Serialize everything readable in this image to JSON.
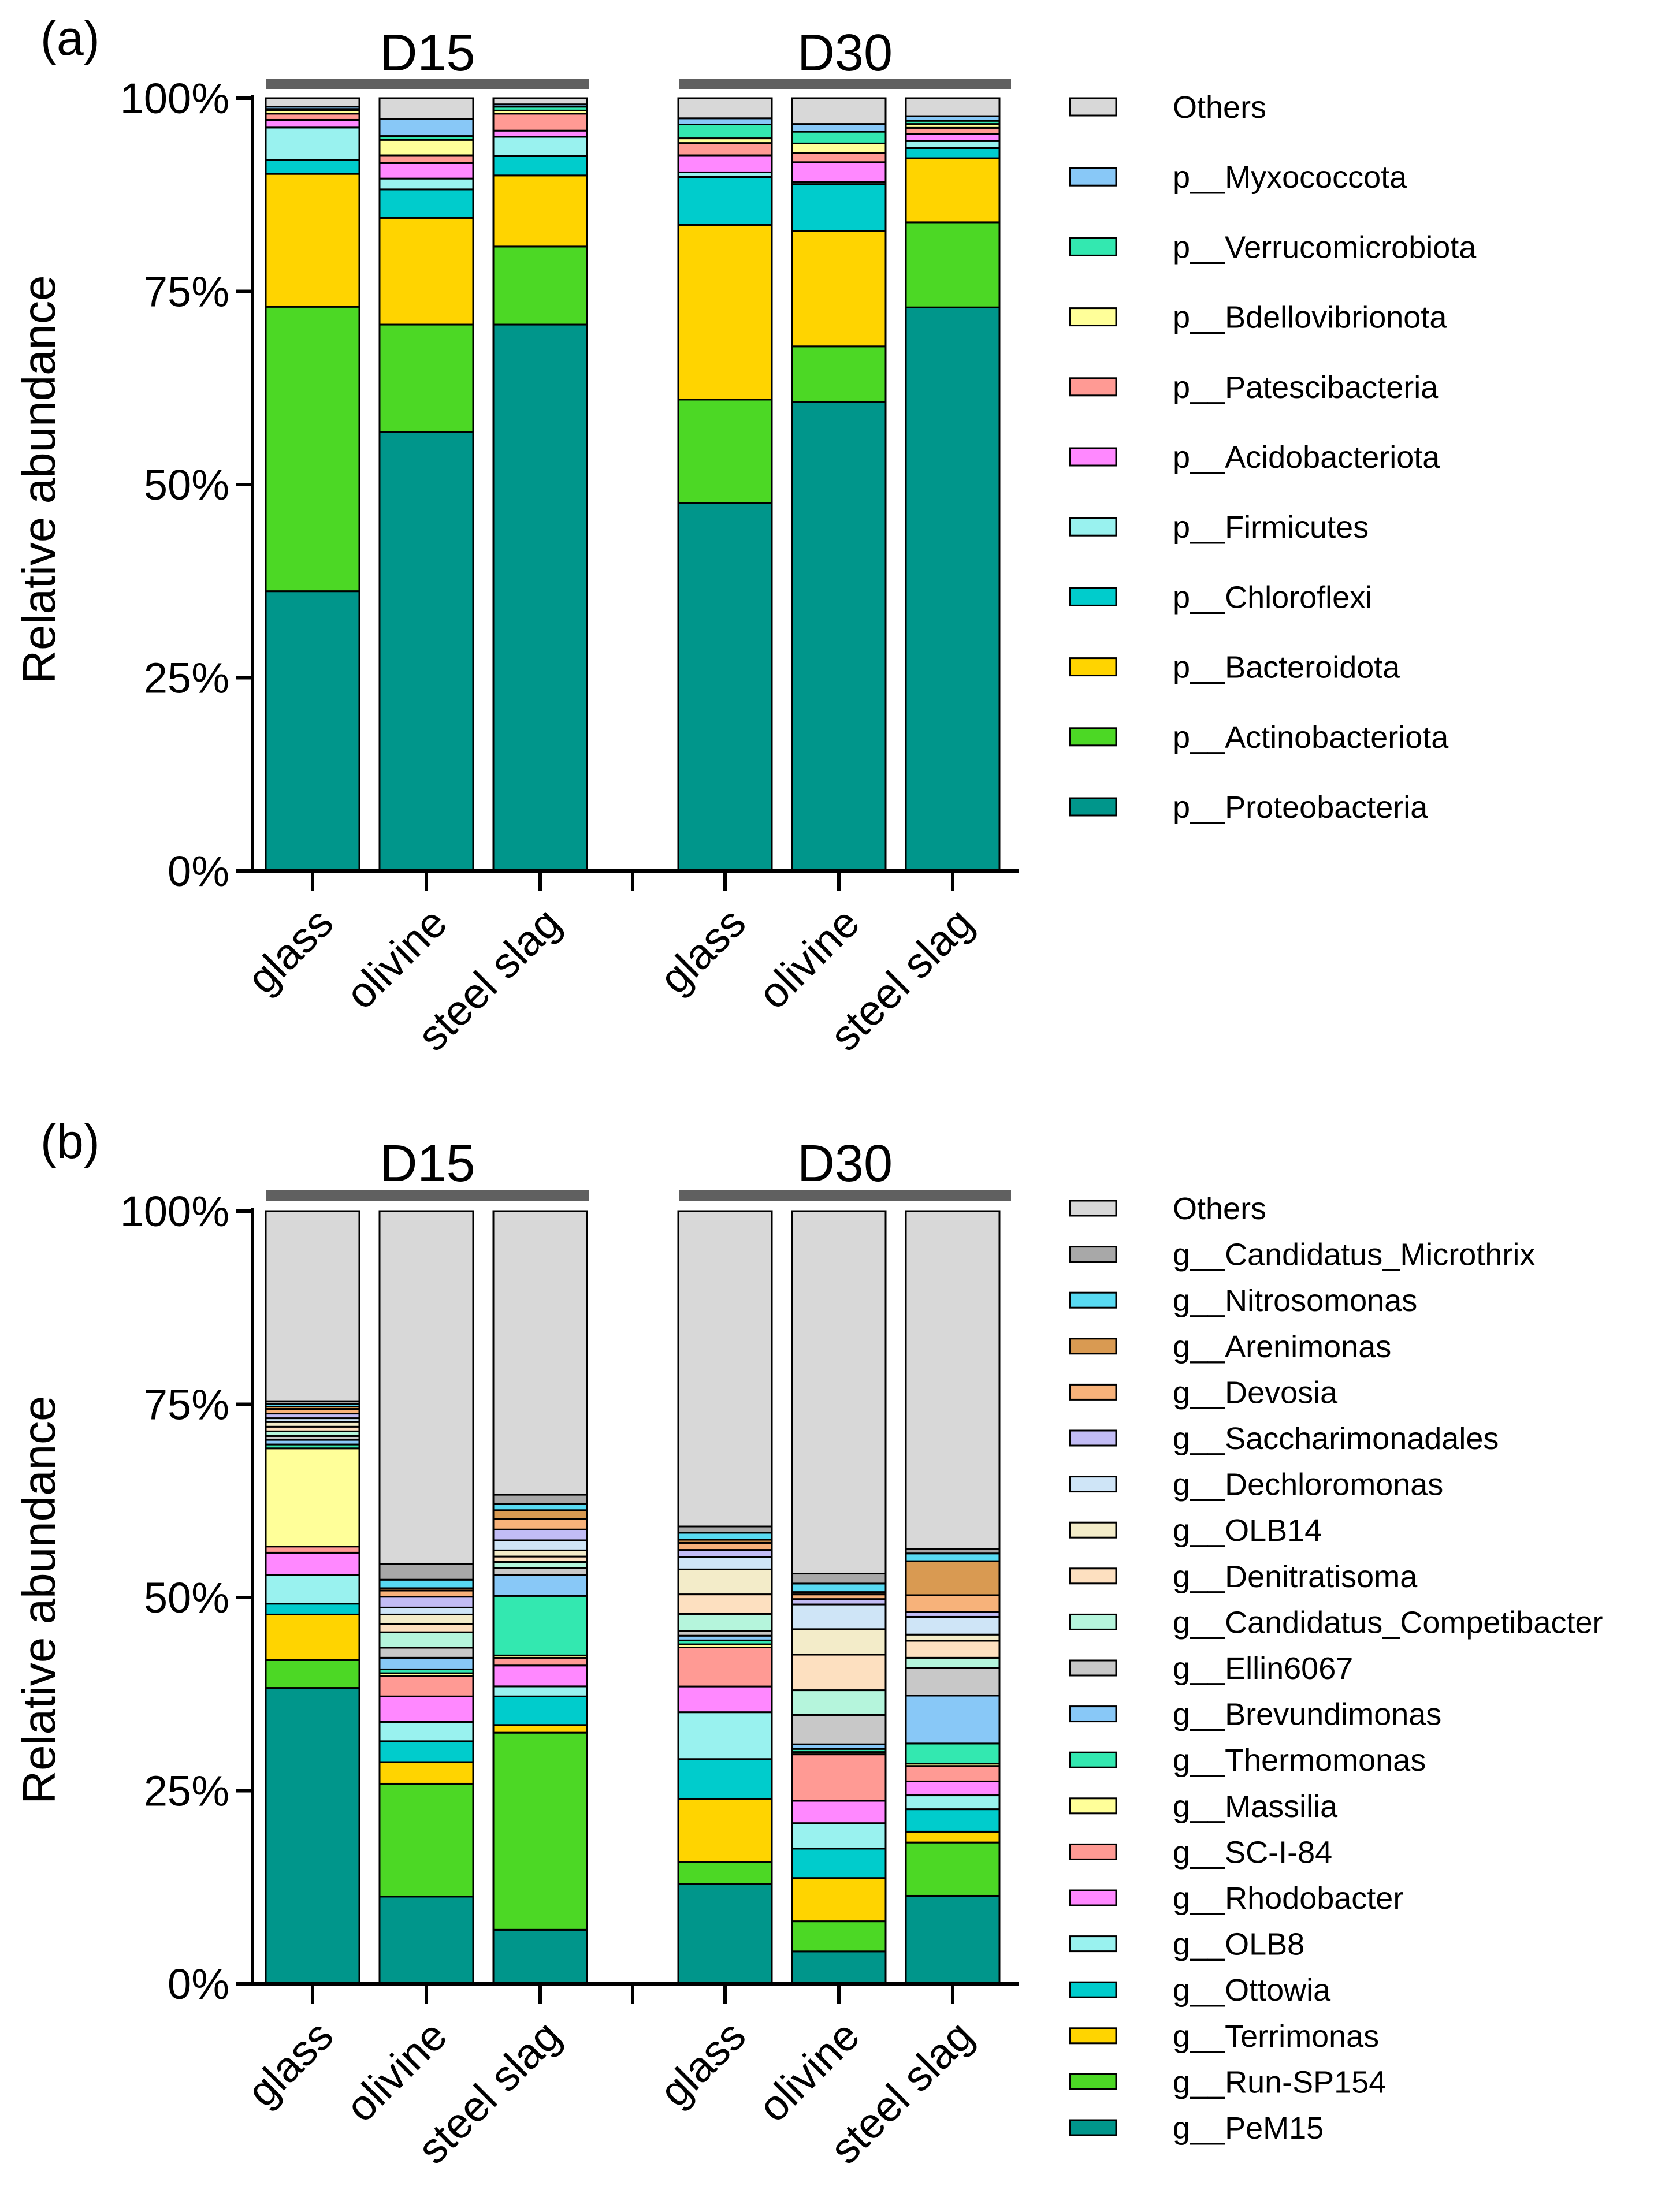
{
  "chart_data": [
    {
      "type": "bar",
      "stacked": true,
      "panel_label": "(a)",
      "ylabel": "Relative abundance",
      "xlabel": "",
      "ylim": [
        0,
        100
      ],
      "yticks": [
        "0%",
        "25%",
        "50%",
        "75%",
        "100%"
      ],
      "groups": [
        "D15",
        "D30"
      ],
      "categories": [
        "glass",
        "olivine",
        "steel slag",
        "glass",
        "olivine",
        "steel slag"
      ],
      "legend_position": "right",
      "series": [
        {
          "name": "p__Proteobacteria",
          "color": "#00968b",
          "values": [
            36.2,
            56.8,
            70.7,
            47.6,
            60.1,
            72.2
          ]
        },
        {
          "name": "p__Actinobacteriota",
          "color": "#4cd825",
          "values": [
            36.8,
            13.9,
            10.1,
            13.4,
            7.1,
            10.9
          ]
        },
        {
          "name": "p__Bacteroidota",
          "color": "#ffd400",
          "values": [
            17.2,
            13.8,
            9.2,
            22.6,
            14.8,
            8.2
          ]
        },
        {
          "name": "p__Chloroflexi",
          "color": "#00cccc",
          "values": [
            1.8,
            3.7,
            2.5,
            6.2,
            6.0,
            1.3
          ]
        },
        {
          "name": "p__Firmicutes",
          "color": "#99f2ef",
          "values": [
            4.2,
            1.4,
            2.5,
            0.6,
            0.3,
            0.9
          ]
        },
        {
          "name": "p__Acidobacteriota",
          "color": "#ff88ff",
          "values": [
            1.0,
            2.0,
            0.8,
            2.2,
            2.5,
            0.9
          ]
        },
        {
          "name": "p__Patescibacteria",
          "color": "#ff9a94",
          "values": [
            0.8,
            1.0,
            2.2,
            1.6,
            1.2,
            0.8
          ]
        },
        {
          "name": "p__Bdellovibrionota",
          "color": "#ffff99",
          "values": [
            0.4,
            2.0,
            0.4,
            0.6,
            1.2,
            0.5
          ]
        },
        {
          "name": "p__Verrucomicrobiota",
          "color": "#33e8b0",
          "values": [
            0.2,
            0.5,
            0.5,
            1.8,
            1.5,
            0.4
          ]
        },
        {
          "name": "p__Myxococcota",
          "color": "#88c8f7",
          "values": [
            0.3,
            2.2,
            0.3,
            0.8,
            1.0,
            0.6
          ]
        },
        {
          "name": "Others",
          "color": "#d8d8d8",
          "values": [
            1.1,
            2.7,
            0.8,
            2.6,
            3.3,
            2.3
          ]
        }
      ]
    },
    {
      "type": "bar",
      "stacked": true,
      "panel_label": "(b)",
      "ylabel": "Relative abundance",
      "xlabel": "",
      "ylim": [
        0,
        100
      ],
      "yticks": [
        "0%",
        "25%",
        "50%",
        "75%",
        "100%"
      ],
      "groups": [
        "D15",
        "D30"
      ],
      "categories": [
        "glass",
        "olivine",
        "steel slag",
        "glass",
        "olivine",
        "steel slag"
      ],
      "legend_position": "right",
      "series": [
        {
          "name": "g__PeM15",
          "color": "#00968b",
          "values": [
            38.3,
            11.3,
            7.0,
            12.8,
            4.2,
            11.4
          ]
        },
        {
          "name": "g__Run-SP154",
          "color": "#4cd825",
          "values": [
            3.6,
            14.6,
            25.5,
            2.8,
            3.9,
            6.9
          ]
        },
        {
          "name": "g__Terrimonas",
          "color": "#ffd400",
          "values": [
            5.9,
            2.8,
            1.0,
            8.1,
            5.6,
            1.4
          ]
        },
        {
          "name": "g__Ottowia",
          "color": "#00cccc",
          "values": [
            1.4,
            2.7,
            3.7,
            5.1,
            3.8,
            2.9
          ]
        },
        {
          "name": "g__OLB8",
          "color": "#99f2ef",
          "values": [
            3.7,
            2.5,
            1.3,
            6.0,
            3.3,
            1.8
          ]
        },
        {
          "name": "g__Rhodobacter",
          "color": "#ff88ff",
          "values": [
            2.9,
            3.3,
            2.7,
            3.3,
            2.9,
            1.8
          ]
        },
        {
          "name": "g__SC-I-84",
          "color": "#ff9a94",
          "values": [
            0.8,
            2.6,
            1.0,
            5.0,
            6.0,
            2.0
          ]
        },
        {
          "name": "g__Massilia",
          "color": "#ffff99",
          "values": [
            12.7,
            0.4,
            0.3,
            0.4,
            0.3,
            0.3
          ]
        },
        {
          "name": "g__Thermomonas",
          "color": "#33e8b0",
          "values": [
            0.5,
            0.5,
            7.7,
            0.5,
            0.4,
            2.6
          ]
        },
        {
          "name": "g__Brevundimonas",
          "color": "#88c8f7",
          "values": [
            0.6,
            1.5,
            2.7,
            0.6,
            0.6,
            6.2
          ]
        },
        {
          "name": "g__Ellin6067",
          "color": "#c8c8c8",
          "values": [
            0.5,
            1.3,
            0.9,
            0.6,
            3.8,
            3.6
          ]
        },
        {
          "name": "g__Candidatus_Competibacter",
          "color": "#b5f5dc",
          "values": [
            0.6,
            2.0,
            0.8,
            2.2,
            3.2,
            1.3
          ]
        },
        {
          "name": "g__Denitratisoma",
          "color": "#fde0c0",
          "values": [
            0.6,
            1.1,
            0.7,
            2.5,
            4.6,
            2.2
          ]
        },
        {
          "name": "g__OLB14",
          "color": "#f3ecc9",
          "values": [
            0.6,
            1.2,
            0.8,
            3.2,
            3.3,
            0.8
          ]
        },
        {
          "name": "g__Dechloromonas",
          "color": "#cfe5f7",
          "values": [
            0.5,
            0.9,
            1.3,
            1.6,
            3.2,
            2.3
          ]
        },
        {
          "name": "g__Saccharimonadales",
          "color": "#c2bcf5",
          "values": [
            0.6,
            1.4,
            1.4,
            0.9,
            0.7,
            0.6
          ]
        },
        {
          "name": "g__Devosia",
          "color": "#f7b27a",
          "values": [
            0.6,
            0.8,
            1.4,
            0.9,
            0.6,
            2.2
          ]
        },
        {
          "name": "g__Arenimonas",
          "color": "#d99a52",
          "values": [
            0.3,
            0.3,
            1.1,
            0.4,
            0.3,
            4.4
          ]
        },
        {
          "name": "g__Nitrosomonas",
          "color": "#58daf2",
          "values": [
            0.3,
            1.1,
            0.8,
            0.9,
            1.1,
            1.0
          ]
        },
        {
          "name": "g__Candidatus_Microthrix",
          "color": "#a8a8a8",
          "values": [
            0.4,
            2.0,
            1.2,
            0.8,
            1.3,
            0.6
          ]
        },
        {
          "name": "Others",
          "color": "#d8d8d8",
          "values": [
            24.6,
            45.7,
            36.7,
            40.4,
            46.9,
            43.7
          ]
        }
      ]
    }
  ]
}
